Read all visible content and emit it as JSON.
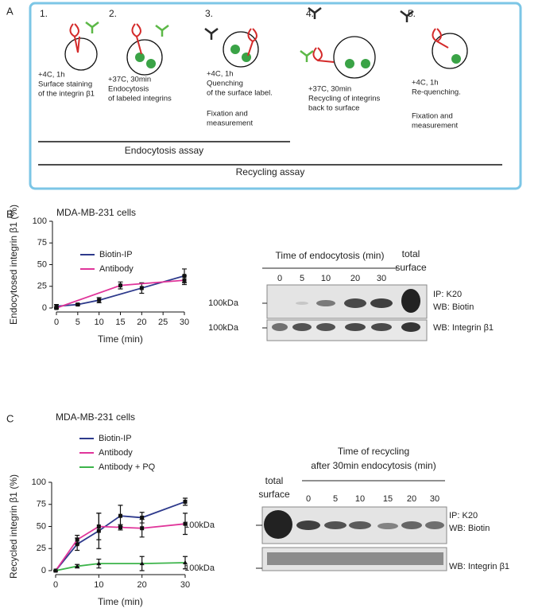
{
  "panel_labels": [
    "A",
    "B",
    "C"
  ],
  "diagram": {
    "steps": [
      {
        "number": "1.",
        "lines": [
          "+4C, 1h",
          "Surface staining",
          "of the integrin β1"
        ]
      },
      {
        "number": "2.",
        "lines": [
          "+37C, 30min",
          "Endocytosis",
          "of labeled integrins"
        ]
      },
      {
        "number": "3.",
        "lines": [
          "+4C, 1h",
          "Quenching",
          "of the surface label."
        ],
        "note": [
          "Fixation and",
          "measurement"
        ]
      },
      {
        "number": "4.",
        "lines": [
          "+37C, 30min",
          "Recycling of integrins",
          "back to surface"
        ]
      },
      {
        "number": "5.",
        "lines": [
          "+4C, 1h",
          "Re-quenching."
        ],
        "note": [
          "Fixation and",
          "measurement"
        ]
      }
    ],
    "assays": [
      "Endocytosis assay",
      "Recycling assay"
    ]
  },
  "chart_data": [
    {
      "type": "line",
      "title": "MDA-MB-231 cells",
      "x_label": "Time (min)",
      "y_label": "Endocytosed integrin β1 (%)",
      "xlim": [
        0,
        30
      ],
      "xticks": [
        0,
        5,
        10,
        15,
        20,
        25,
        30
      ],
      "ylim": [
        0,
        100
      ],
      "yticks": [
        0,
        25,
        50,
        75,
        100
      ],
      "legend": "upper left",
      "series": [
        {
          "name": "Biotin-IP",
          "color": "#2e3a8c",
          "x": [
            0,
            5,
            10,
            20,
            30
          ],
          "values": [
            2,
            4,
            9,
            23,
            37
          ],
          "errors": [
            2,
            1,
            3,
            6,
            8
          ]
        },
        {
          "name": "Antibody",
          "color": "#e0359a",
          "x": [
            0,
            15,
            30
          ],
          "values": [
            0,
            26,
            32
          ],
          "errors": [
            1,
            4,
            5
          ]
        }
      ]
    },
    {
      "type": "line",
      "title": "MDA-MB-231 cells",
      "x_label": "Time (min)",
      "y_label": "Recycled integrin β1 (%)",
      "xlim": [
        0,
        30
      ],
      "xticks": [
        0,
        10,
        20,
        30
      ],
      "ylim": [
        0,
        100
      ],
      "yticks": [
        0,
        25,
        50,
        75,
        100
      ],
      "legend": "upper left",
      "series": [
        {
          "name": "Biotin-IP",
          "color": "#2e3a8c",
          "x": [
            0,
            5,
            10,
            15,
            20,
            30
          ],
          "values": [
            0,
            30,
            45,
            62,
            60,
            78
          ],
          "errors": [
            0,
            7,
            20,
            12,
            6,
            4
          ]
        },
        {
          "name": "Antibody",
          "color": "#e0359a",
          "x": [
            0,
            5,
            10,
            15,
            20,
            30
          ],
          "values": [
            0,
            35,
            50,
            49,
            48,
            53
          ],
          "errors": [
            0,
            5,
            15,
            3,
            10,
            12
          ]
        },
        {
          "name": "Antibody + PQ",
          "color": "#3cb44a",
          "x": [
            0,
            5,
            10,
            20,
            30
          ],
          "values": [
            0,
            5,
            8,
            8,
            9
          ],
          "errors": [
            0,
            2,
            5,
            8,
            7
          ]
        }
      ]
    }
  ],
  "blots": [
    {
      "header": [
        "Time of endocytosis (min)"
      ],
      "lanes": [
        "0",
        "5",
        "10",
        "20",
        "30"
      ],
      "total": [
        "total",
        "surface"
      ],
      "markers": [
        "100kDa",
        "100kDa"
      ],
      "rows": [
        "IP: K20",
        "WB: Biotin",
        "WB: Integrin β1"
      ]
    },
    {
      "header": [
        "Time of recycling",
        "after 30min endocytosis (min)"
      ],
      "lanes": [
        "0",
        "5",
        "10",
        "15",
        "20",
        "30"
      ],
      "total": [
        "total",
        "surface"
      ],
      "markers": [
        "100kDa",
        "100kDa"
      ],
      "rows": [
        "IP: K20",
        "WB: Biotin",
        "WB: Integrin β1"
      ]
    }
  ]
}
